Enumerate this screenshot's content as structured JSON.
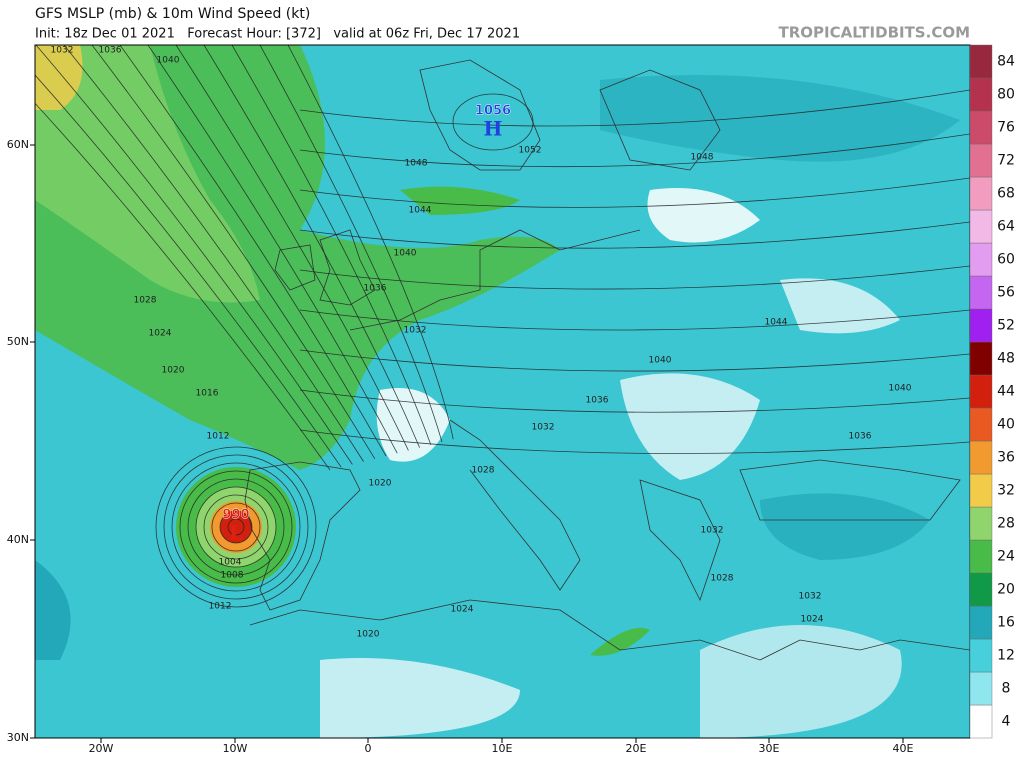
{
  "header": {
    "title": "GFS MSLP (mb) & 10m Wind Speed (kt)",
    "subtitle": "Init: 18z Dec 01 2021   Forecast Hour: [372]   valid at 06z Fri, Dec 17 2021",
    "credit": "TROPICALTIDBITS.COM"
  },
  "axes": {
    "latitude_labels": [
      "60N",
      "50N",
      "40N",
      "30N"
    ],
    "longitude_labels": [
      "20W",
      "10W",
      "0",
      "10E",
      "20E",
      "30E",
      "40E"
    ]
  },
  "colorbar": {
    "ticks": [
      4,
      8,
      12,
      16,
      20,
      24,
      28,
      32,
      36,
      40,
      44,
      48,
      52,
      56,
      60,
      64,
      68,
      72,
      76,
      80,
      84
    ],
    "colors": [
      "#ffffff",
      "#8fe6ee",
      "#48cfdc",
      "#22a8b8",
      "#109a48",
      "#48bb48",
      "#8fd46c",
      "#f2cc48",
      "#f09a30",
      "#e85a22",
      "#d2200e",
      "#800000",
      "#a020f0",
      "#c466f0",
      "#e29cf0",
      "#f2b8e6",
      "#f29cc0",
      "#e27090",
      "#cc4a6a",
      "#b4324e",
      "#98283e"
    ]
  },
  "isobar_labels": [
    1032,
    1036,
    1040,
    1048,
    1044,
    1040,
    1036,
    1032,
    1028,
    1024,
    1020,
    1016,
    1012,
    1008,
    1004,
    1012,
    1020,
    1028,
    1032,
    1036,
    1040,
    1044,
    1048,
    1052,
    1040,
    1036,
    1032,
    1028,
    1024,
    1020,
    1024,
    1032
  ],
  "pressure_centers": [
    {
      "value": 1056,
      "symbol": "H"
    },
    {
      "value": 990,
      "symbol": "L"
    }
  ]
}
